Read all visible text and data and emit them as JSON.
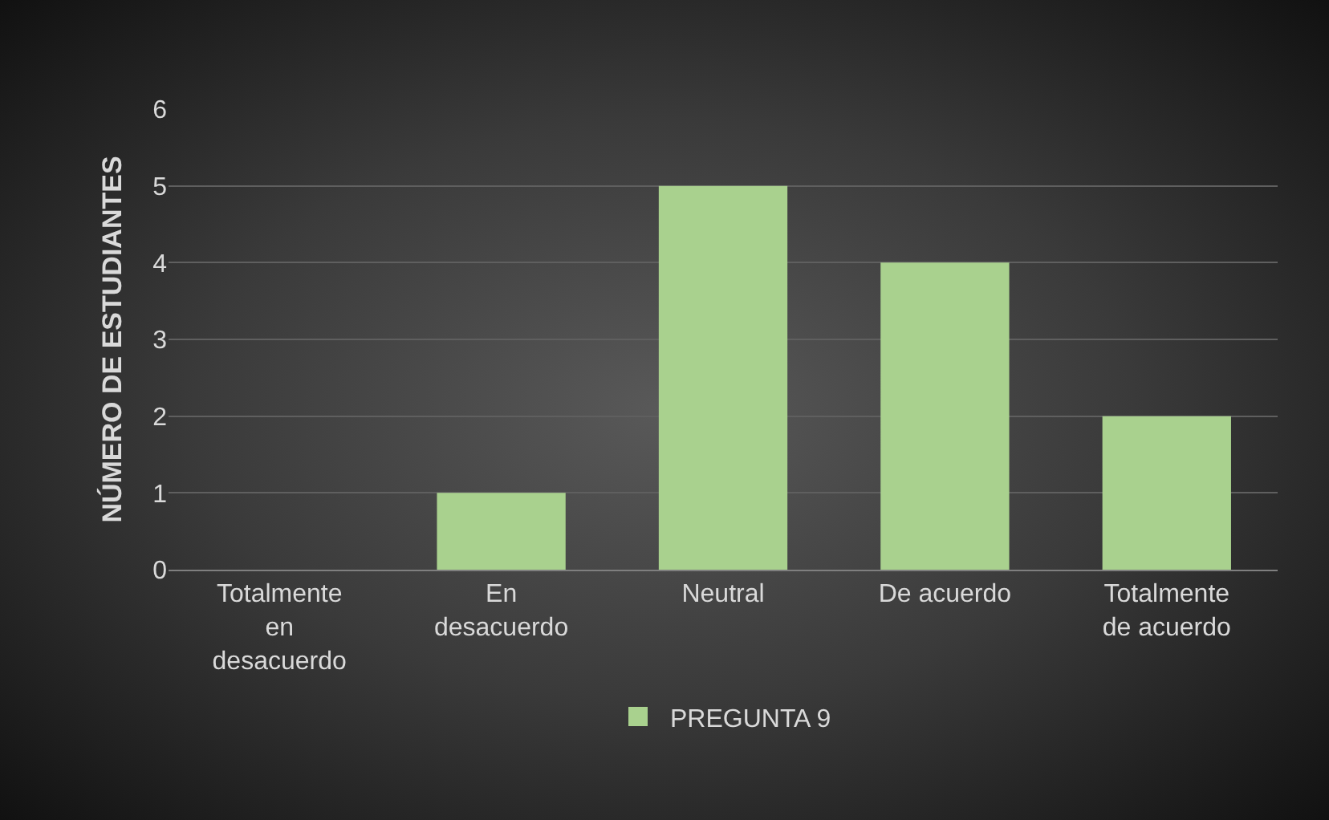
{
  "chart_data": {
    "type": "bar",
    "ylabel": "NÚMERO DE ESTUDIANTES",
    "categories": [
      "Totalmente en desacuerdo",
      "En desacuerdo",
      "Neutral",
      "De acuerdo",
      "Totalmente de acuerdo"
    ],
    "series": [
      {
        "name": "PREGUNTA 9",
        "color": "#a9d18e",
        "values": [
          0,
          1,
          5,
          4,
          2
        ]
      }
    ],
    "ylim": [
      0,
      6
    ],
    "yticks": [
      0,
      1,
      2,
      3,
      4,
      5,
      6
    ],
    "grid": "y",
    "legend": "bottom"
  }
}
